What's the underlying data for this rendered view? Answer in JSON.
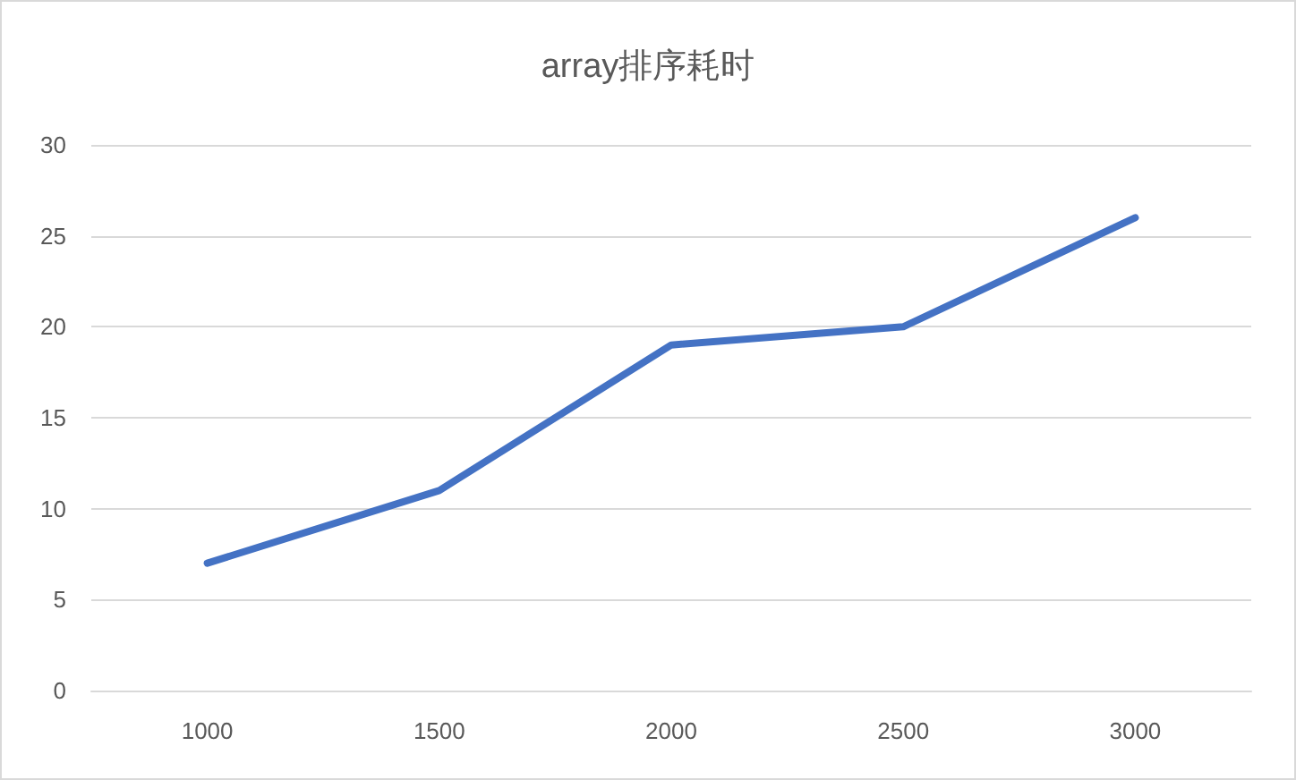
{
  "chart_data": {
    "type": "line",
    "title": "array排序耗时",
    "categories": [
      "1000",
      "1500",
      "2000",
      "2500",
      "3000"
    ],
    "series": [
      {
        "color": "#4472c4",
        "values": [
          7,
          11,
          19,
          20,
          26
        ]
      }
    ],
    "ylim": [
      0,
      30
    ],
    "yticks": [
      0,
      5,
      10,
      15,
      20,
      25,
      30
    ],
    "grid": "y",
    "marker": "none",
    "line_style": "solid"
  }
}
